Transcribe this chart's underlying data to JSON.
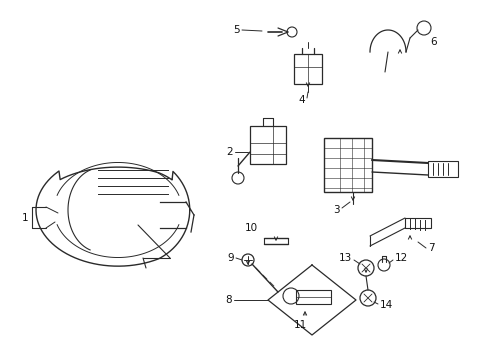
{
  "background_color": "#ffffff",
  "fig_width": 4.89,
  "fig_height": 3.6,
  "dpi": 100,
  "line_color": "#2a2a2a",
  "text_color": "#111111",
  "font_size": 7.5
}
